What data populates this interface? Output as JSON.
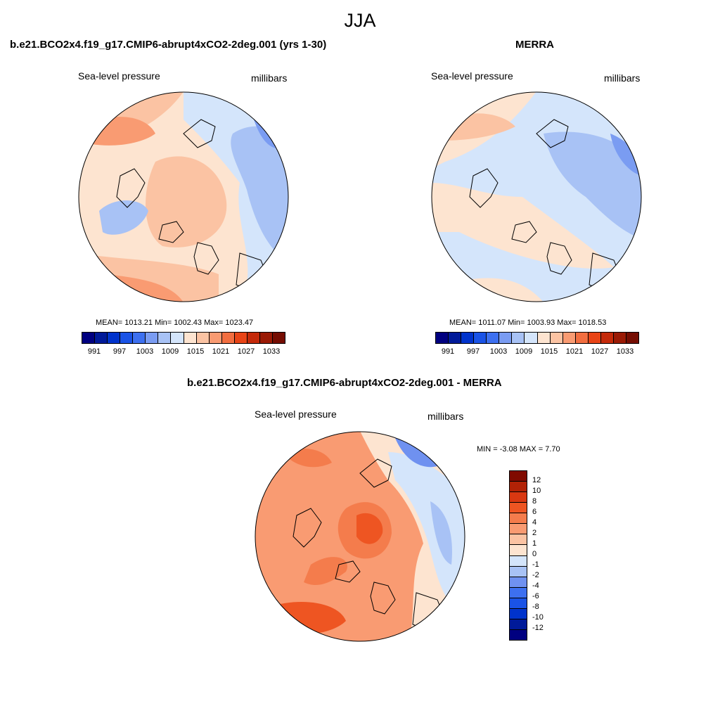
{
  "page_title": "JJA",
  "colors": {
    "abs_scale": [
      "#000080",
      "#001a99",
      "#0033cc",
      "#1a53e6",
      "#3d70f0",
      "#7a9cf2",
      "#a8c2f5",
      "#d4e5fb",
      "#fde4d0",
      "#fbc3a3",
      "#f99b72",
      "#f26e40",
      "#e84416",
      "#c42a0a",
      "#9a1a05",
      "#750d02"
    ],
    "diff_scale": [
      "#000080",
      "#001a99",
      "#0033cc",
      "#1a53e6",
      "#3d70f0",
      "#6f91f0",
      "#a8c2f5",
      "#d4e5fb",
      "#fde4d0",
      "#fbc3a3",
      "#f99b72",
      "#f47c4c",
      "#ee5522",
      "#d93811",
      "#b22206",
      "#800a00"
    ]
  },
  "panels": {
    "model": {
      "title": "b.e21.BCO2x4.f19_g17.CMIP6-abrupt4xCO2-2deg.001 (yrs 1-30)",
      "left_label": "Sea-level pressure",
      "right_label": "millibars",
      "stats": "MEAN= 1013.21  Min= 1002.43  Max= 1023.47"
    },
    "obs": {
      "title": "MERRA",
      "left_label": "Sea-level pressure",
      "right_label": "millibars",
      "stats": "MEAN= 1011.07  Min= 1003.93  Max= 1018.53"
    },
    "diff": {
      "title": "b.e21.BCO2x4.f19_g17.CMIP6-abrupt4xCO2-2deg.001 - MERRA",
      "left_label": "Sea-level pressure",
      "right_label": "millibars",
      "stats": "MIN =  -3.08 MAX =   7.70"
    }
  },
  "abs_ticks": [
    "991",
    "997",
    "1003",
    "1009",
    "1015",
    "1021",
    "1027",
    "1033"
  ],
  "diff_ticks": [
    "-12",
    "-10",
    "-8",
    "-6",
    "-4",
    "-2",
    "-1",
    "0",
    "1",
    "2",
    "4",
    "6",
    "8",
    "10",
    "12"
  ]
}
